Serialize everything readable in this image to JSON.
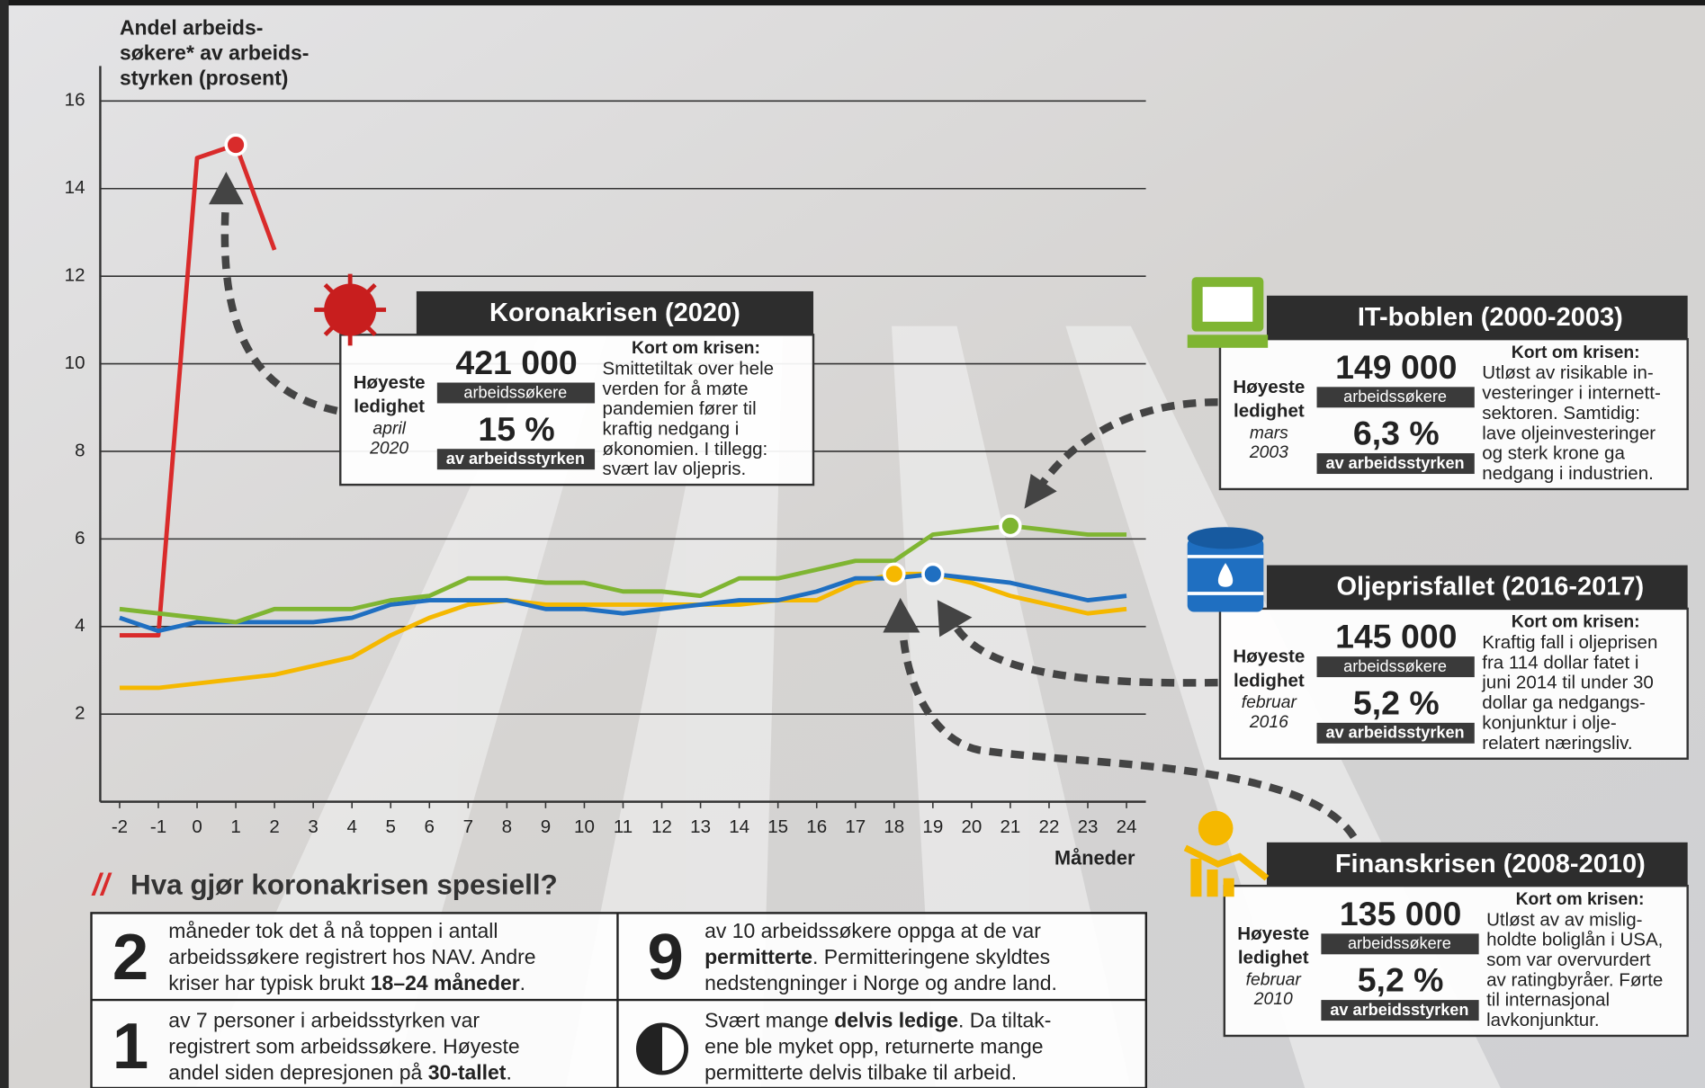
{
  "chart_data": {
    "type": "line",
    "y_label": [
      "Andel arbeids-",
      "søkere* av arbeids-",
      "styrken (prosent)"
    ],
    "x_label": "Måneder",
    "x": [
      -2,
      -1,
      0,
      1,
      2,
      3,
      4,
      5,
      6,
      7,
      8,
      9,
      10,
      11,
      12,
      13,
      14,
      15,
      16,
      17,
      18,
      19,
      20,
      21,
      22,
      23,
      24
    ],
    "series": [
      {
        "color": "#d92b2b",
        "values": [
          3.8,
          3.8,
          14.7,
          15.0,
          12.6,
          null,
          null,
          null,
          null,
          null,
          null,
          null,
          null,
          null,
          null,
          null,
          null,
          null,
          null,
          null,
          null,
          null,
          null,
          null,
          null,
          null,
          null
        ]
      },
      {
        "color": "#f5b800",
        "values": [
          2.6,
          2.6,
          2.7,
          2.8,
          2.9,
          3.1,
          3.3,
          3.8,
          4.2,
          4.5,
          4.6,
          4.5,
          4.5,
          4.5,
          4.5,
          4.5,
          4.5,
          4.6,
          4.6,
          5.0,
          5.2,
          5.2,
          5.0,
          4.7,
          4.5,
          4.3,
          4.4
        ]
      },
      {
        "color": "#1f6fc1",
        "values": [
          4.2,
          3.9,
          4.1,
          4.1,
          4.1,
          4.1,
          4.2,
          4.5,
          4.6,
          4.6,
          4.6,
          4.4,
          4.4,
          4.3,
          4.4,
          4.5,
          4.6,
          4.6,
          4.8,
          5.1,
          5.1,
          5.2,
          5.1,
          5.0,
          4.8,
          4.6,
          4.7
        ]
      },
      {
        "color": "#7fb532",
        "values": [
          4.4,
          4.3,
          4.2,
          4.1,
          4.4,
          4.4,
          4.4,
          4.6,
          4.7,
          5.1,
          5.1,
          5.0,
          5.0,
          4.8,
          4.8,
          4.7,
          5.1,
          5.1,
          5.3,
          5.5,
          5.5,
          6.1,
          6.2,
          6.3,
          6.2,
          6.1,
          6.1
        ]
      }
    ],
    "xlim": [
      -2.5,
      24.5
    ],
    "ylim": [
      0,
      16.8
    ],
    "xticks": [
      -2,
      -1,
      0,
      1,
      2,
      3,
      4,
      5,
      6,
      7,
      8,
      9,
      10,
      11,
      12,
      13,
      14,
      15,
      16,
      17,
      18,
      19,
      20,
      21,
      22,
      23,
      24
    ],
    "yticks": [
      2,
      4,
      6,
      8,
      10,
      12,
      14,
      16
    ],
    "grid": true
  },
  "crises": [
    {
      "title": "Koronakrisen (2020)",
      "peak": [
        "Høyeste",
        "ledighet"
      ],
      "date": [
        "april",
        "2020"
      ],
      "count": "421 000",
      "count_label": "arbeidssøkere",
      "pct": "15 %",
      "pct_label": "av arbeidsstyrken",
      "about_title": "Kort om krisen:",
      "about": [
        "Smittetiltak over hele",
        "verden for å møte",
        "pandemien fører til",
        "kraftig nedgang i",
        "økonomien. I tillegg:",
        "svært lav oljepris."
      ]
    },
    {
      "title": "IT-boblen (2000-2003)",
      "peak": [
        "Høyeste",
        "ledighet"
      ],
      "date": [
        "mars",
        "2003"
      ],
      "count": "149 000",
      "count_label": "arbeidssøkere",
      "pct": "6,3 %",
      "pct_label": "av arbeidsstyrken",
      "about_title": "Kort om krisen:",
      "about": [
        "Utløst av risikable in-",
        "vesteringer i internett-",
        "sektoren. Samtidig:",
        "lave oljeinvesteringer",
        "og sterk krone ga",
        "nedgang i industrien."
      ]
    },
    {
      "title": "Oljeprisfallet (2016-2017)",
      "peak": [
        "Høyeste",
        "ledighet"
      ],
      "date": [
        "februar",
        "2016"
      ],
      "count": "145 000",
      "count_label": "arbeidssøkere",
      "pct": "5,2 %",
      "pct_label": "av arbeidsstyrken",
      "about_title": "Kort om krisen:",
      "about": [
        "Kraftig fall i oljeprisen",
        "fra 114 dollar fatet i",
        "juni 2014 til under 30",
        "dollar ga nedgangs-",
        "konjunktur i olje-",
        "relatert næringsliv."
      ]
    },
    {
      "title": "Finanskrisen (2008-2010)",
      "peak": [
        "Høyeste",
        "ledighet"
      ],
      "date": [
        "februar",
        "2010"
      ],
      "count": "135 000",
      "count_label": "arbeidssøkere",
      "pct": "5,2 %",
      "pct_label": "av arbeidsstyrken",
      "about_title": "Kort om krisen:",
      "about": [
        "Utløst av av mislig-",
        "holdte boliglån i USA,",
        "som var overvurdert",
        "av ratingbyråer. Førte",
        "til internasjonal",
        "lavkonjunktur."
      ]
    }
  ],
  "special": {
    "marker": "//",
    "heading": "Hva gjør koronakrisen spesiell?",
    "facts": [
      {
        "big": "2",
        "lines": [
          [
            "måneder tok det å nå toppen i antall"
          ],
          [
            "arbeidssøkere registrert hos NAV. Andre"
          ],
          [
            "kriser har typisk brukt ",
            {
              "text": "18–24 måneder",
              "bold": true
            },
            "."
          ]
        ]
      },
      {
        "big": "9",
        "lines": [
          [
            "av 10 arbeidssøkere oppga at de var"
          ],
          [
            {
              "text": "permitterte",
              "bold": true
            },
            ". Permitteringene skyldtes"
          ],
          [
            "nedstengninger i Norge og andre land."
          ]
        ]
      },
      {
        "big": "1",
        "lines": [
          [
            "av 7 personer i arbeidsstyrken var"
          ],
          [
            "registrert som arbeidssøkere. Høyeste"
          ],
          [
            "andel siden depresjonen på ",
            {
              "text": "30-tallet",
              "bold": true
            },
            "."
          ]
        ]
      },
      {
        "lines": [
          [
            "Svært mange ",
            {
              "text": "delvis ledige",
              "bold": true
            },
            ". Da tiltak-"
          ],
          [
            "ene ble myket opp, returnerte mange"
          ],
          [
            "permitterte delvis tilbake til arbeid."
          ]
        ]
      }
    ]
  }
}
